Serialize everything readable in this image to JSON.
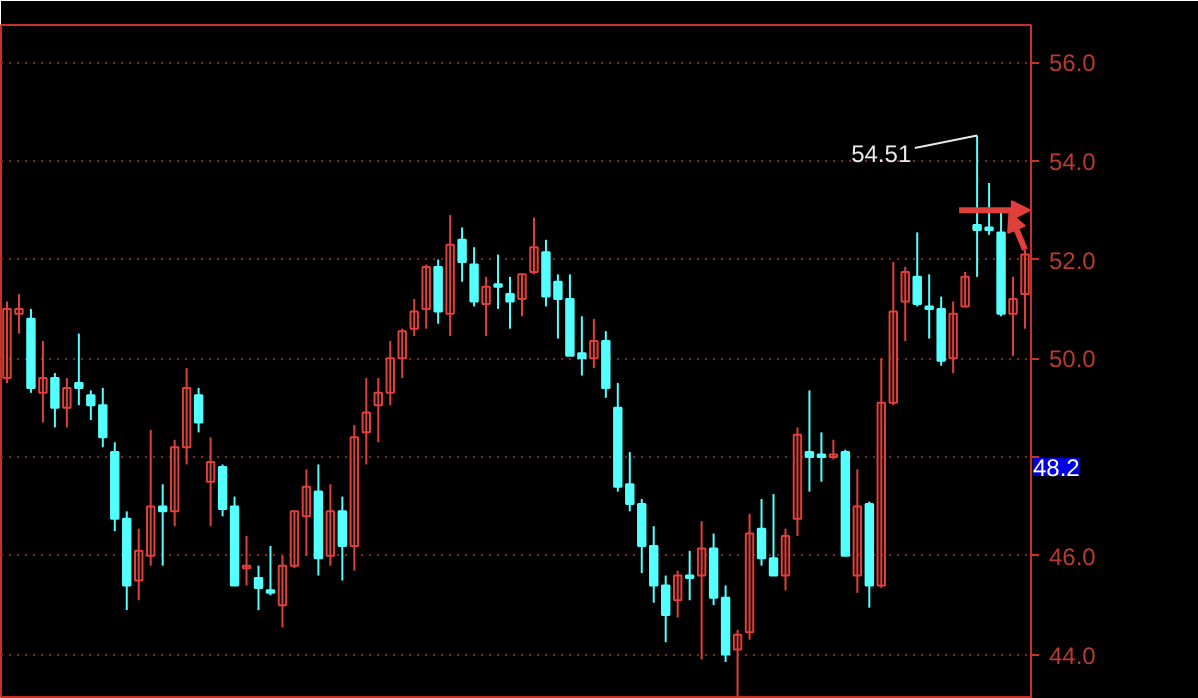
{
  "chart_data": {
    "type": "candlestick",
    "categories": [
      null,
      null,
      null,
      null,
      null,
      null,
      null,
      null,
      null,
      null,
      null,
      null,
      null,
      null,
      null,
      null,
      null,
      null,
      null,
      null,
      null,
      null,
      null,
      null,
      null,
      null,
      null,
      null,
      null,
      null,
      null,
      null,
      null,
      null,
      null,
      null,
      null,
      null,
      null,
      null,
      null,
      null,
      null,
      null,
      null,
      null,
      null,
      null,
      null,
      null,
      null,
      null,
      null,
      null,
      null,
      null,
      null,
      null,
      null,
      null,
      null,
      null,
      null,
      null,
      null,
      null,
      null,
      null,
      null,
      null,
      null,
      null,
      null,
      null,
      null,
      null,
      null,
      null,
      null,
      null,
      null,
      null,
      null,
      null,
      null,
      null
    ],
    "ohlc": [
      [
        49.6,
        51.15,
        49.5,
        51.0
      ],
      [
        50.9,
        51.3,
        50.5,
        51.0
      ],
      [
        50.8,
        51.0,
        49.3,
        49.4
      ],
      [
        49.3,
        50.35,
        48.7,
        49.6
      ],
      [
        49.6,
        49.7,
        48.6,
        49.0
      ],
      [
        49.0,
        49.6,
        48.6,
        49.4
      ],
      [
        49.5,
        50.5,
        49.05,
        49.4
      ],
      [
        49.25,
        49.35,
        48.75,
        49.05
      ],
      [
        49.05,
        49.4,
        48.2,
        48.4
      ],
      [
        48.1,
        48.3,
        46.5,
        46.75
      ],
      [
        46.75,
        46.9,
        44.9,
        45.4
      ],
      [
        45.5,
        46.55,
        45.1,
        46.1
      ],
      [
        46.0,
        48.55,
        45.8,
        47.0
      ],
      [
        47.0,
        47.45,
        45.8,
        46.9
      ],
      [
        46.9,
        48.35,
        46.6,
        48.2
      ],
      [
        48.2,
        49.8,
        47.85,
        49.4
      ],
      [
        49.25,
        49.4,
        48.5,
        48.7
      ],
      [
        47.5,
        48.4,
        46.6,
        47.9
      ],
      [
        47.8,
        47.85,
        46.8,
        46.95
      ],
      [
        47.0,
        47.2,
        45.4,
        45.4
      ],
      [
        45.75,
        46.4,
        45.4,
        45.8
      ],
      [
        45.55,
        45.8,
        44.9,
        45.35
      ],
      [
        45.3,
        46.2,
        45.2,
        45.25
      ],
      [
        45.0,
        46.0,
        44.55,
        45.8
      ],
      [
        45.8,
        46.9,
        45.75,
        46.9
      ],
      [
        46.8,
        47.75,
        46.0,
        47.4
      ],
      [
        47.3,
        47.85,
        45.6,
        45.95
      ],
      [
        46.0,
        47.45,
        45.8,
        46.9
      ],
      [
        46.9,
        47.2,
        45.5,
        46.2
      ],
      [
        46.2,
        48.65,
        45.7,
        48.4
      ],
      [
        48.5,
        49.6,
        47.85,
        48.9
      ],
      [
        49.05,
        49.6,
        48.3,
        49.3
      ],
      [
        49.3,
        50.35,
        49.05,
        50.0
      ],
      [
        50.0,
        50.6,
        49.6,
        50.55
      ],
      [
        50.6,
        51.2,
        50.45,
        50.95
      ],
      [
        51.0,
        51.9,
        50.6,
        51.85
      ],
      [
        51.85,
        52.0,
        50.7,
        50.95
      ],
      [
        50.9,
        52.9,
        50.45,
        52.3
      ],
      [
        52.4,
        52.65,
        51.55,
        51.95
      ],
      [
        51.9,
        52.25,
        51.05,
        51.15
      ],
      [
        51.1,
        51.65,
        50.45,
        51.45
      ],
      [
        51.5,
        52.1,
        51.0,
        51.45
      ],
      [
        51.3,
        51.65,
        50.6,
        51.15
      ],
      [
        51.2,
        51.7,
        50.85,
        51.7
      ],
      [
        51.75,
        52.85,
        51.7,
        52.25
      ],
      [
        52.15,
        52.4,
        51.05,
        51.25
      ],
      [
        51.55,
        51.7,
        50.4,
        51.2
      ],
      [
        51.2,
        51.7,
        50.05,
        50.05
      ],
      [
        50.1,
        50.85,
        49.65,
        50.0
      ],
      [
        50.0,
        50.8,
        49.8,
        50.35
      ],
      [
        50.35,
        50.55,
        49.2,
        49.4
      ],
      [
        49.0,
        49.5,
        47.3,
        47.4
      ],
      [
        47.45,
        48.1,
        46.9,
        47.05
      ],
      [
        47.05,
        47.15,
        45.65,
        46.2
      ],
      [
        46.2,
        46.6,
        45.05,
        45.4
      ],
      [
        45.4,
        45.6,
        44.25,
        44.8
      ],
      [
        45.1,
        45.7,
        44.75,
        45.6
      ],
      [
        45.6,
        46.1,
        45.1,
        45.55
      ],
      [
        45.6,
        46.7,
        43.9,
        46.15
      ],
      [
        46.15,
        46.45,
        45.0,
        45.15
      ],
      [
        45.15,
        45.4,
        43.85,
        44.0
      ],
      [
        44.1,
        44.5,
        43.15,
        44.4
      ],
      [
        44.45,
        46.85,
        44.3,
        46.45
      ],
      [
        46.55,
        47.15,
        45.8,
        45.95
      ],
      [
        45.95,
        47.25,
        45.6,
        45.6
      ],
      [
        45.6,
        46.55,
        45.3,
        46.4
      ],
      [
        46.75,
        48.6,
        46.4,
        48.45
      ],
      [
        48.1,
        49.35,
        47.3,
        48.0
      ],
      [
        48.05,
        48.5,
        47.5,
        48.0
      ],
      [
        48.0,
        48.35,
        47.95,
        48.05
      ],
      [
        48.1,
        48.15,
        46.0,
        46.0
      ],
      [
        45.6,
        47.75,
        45.25,
        47.0
      ],
      [
        47.05,
        47.1,
        44.95,
        45.4
      ],
      [
        45.4,
        50.0,
        45.35,
        49.1
      ],
      [
        49.1,
        51.95,
        49.05,
        50.95
      ],
      [
        51.15,
        51.85,
        50.35,
        51.75
      ],
      [
        51.65,
        52.55,
        51.05,
        51.1
      ],
      [
        51.05,
        51.7,
        50.4,
        51.0
      ],
      [
        51.0,
        51.25,
        49.85,
        49.95
      ],
      [
        50.0,
        51.15,
        49.7,
        50.9
      ],
      [
        51.05,
        51.75,
        51.05,
        51.65
      ],
      [
        52.7,
        54.51,
        51.65,
        52.6
      ],
      [
        52.65,
        53.55,
        52.5,
        52.6
      ],
      [
        52.55,
        52.95,
        50.85,
        50.9
      ],
      [
        50.9,
        51.65,
        50.05,
        51.2
      ],
      [
        51.3,
        52.2,
        50.6,
        52.1
      ]
    ],
    "ylim": [
      43.1,
      56.75
    ],
    "yticks": [
      {
        "value": 44,
        "label": "44.0"
      },
      {
        "value": 46,
        "label": "46.0"
      },
      {
        "value": 48,
        "label": null
      },
      {
        "value": 50,
        "label": "50.0"
      },
      {
        "value": 52,
        "label": "52.0"
      },
      {
        "value": 54,
        "label": "54.0"
      },
      {
        "value": 56,
        "label": "56.0"
      }
    ],
    "annotations": [
      "54.51",
      "48.2"
    ],
    "grid": "y",
    "tick_labels": "y"
  }
}
